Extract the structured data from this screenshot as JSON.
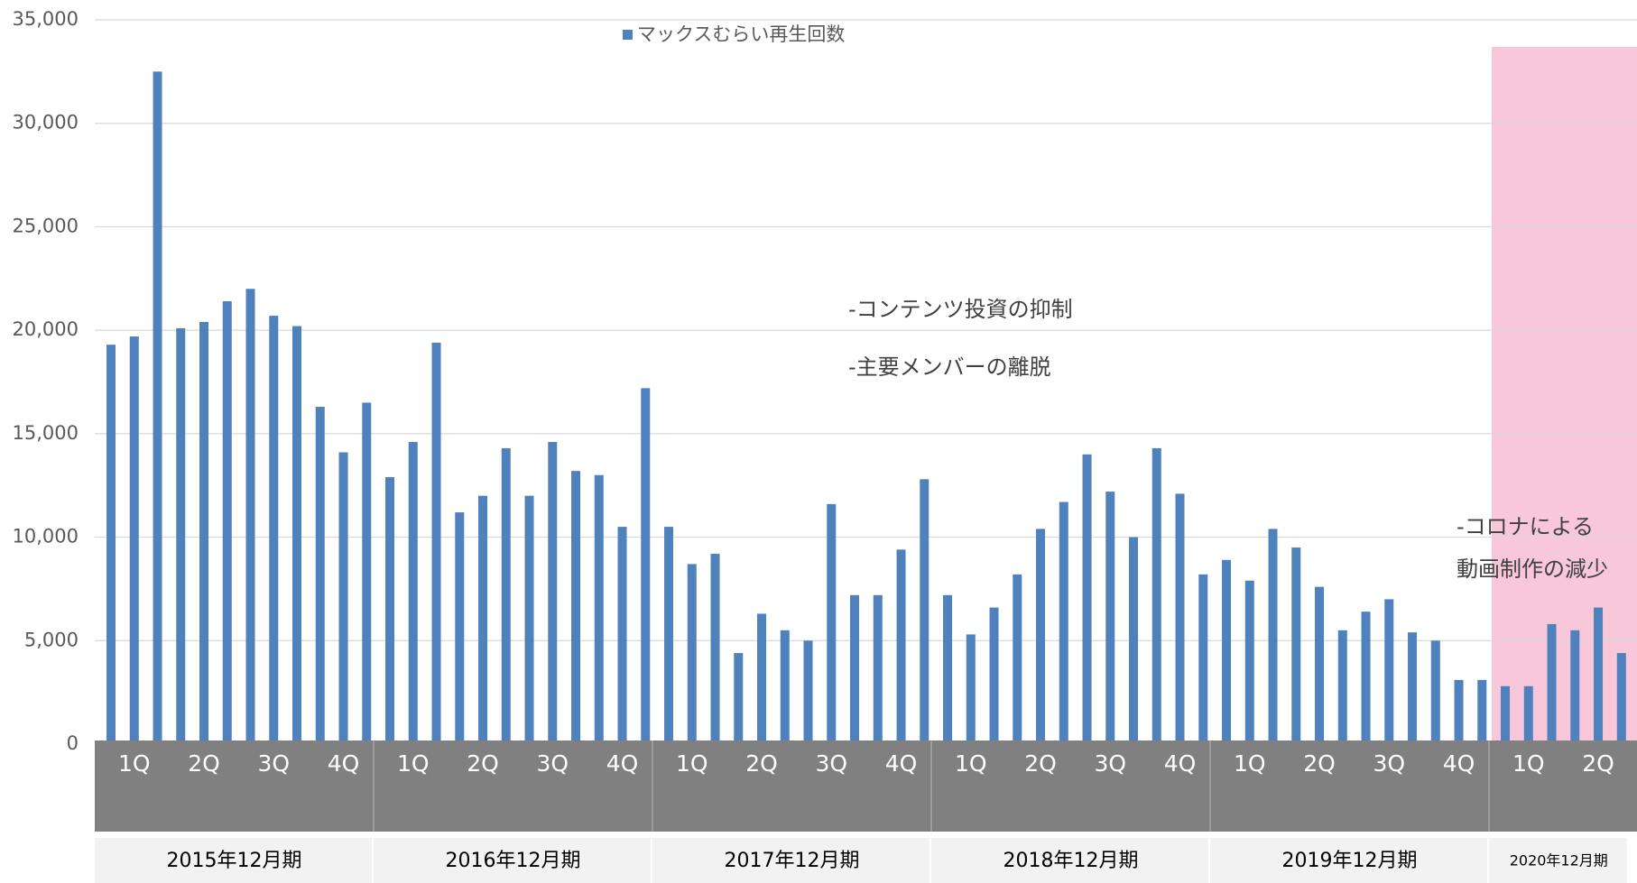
{
  "chart_data": {
    "type": "bar",
    "legend": "マックスむらい再生回数",
    "color": "#4f81bd",
    "highlight_color": "#f8c8da",
    "categories": [
      null,
      null,
      null,
      null,
      null,
      null,
      null,
      null,
      null,
      null,
      null,
      null,
      null,
      null,
      null,
      null,
      null,
      null,
      null,
      null,
      null,
      null,
      null,
      null,
      null,
      null,
      null,
      null,
      null,
      null,
      null,
      null,
      null,
      null,
      null,
      null,
      null,
      null,
      null,
      null,
      null,
      null,
      null,
      null,
      null,
      null,
      null,
      null,
      null,
      null,
      null,
      null,
      null,
      null,
      null,
      null,
      null,
      null,
      null,
      null,
      null,
      null,
      null,
      null,
      null,
      null
    ],
    "values": [
      19300,
      19700,
      32500,
      20100,
      20400,
      21400,
      22000,
      20700,
      20200,
      16300,
      14100,
      16500,
      12900,
      14600,
      19400,
      11200,
      12000,
      14300,
      12000,
      14600,
      13200,
      13000,
      10500,
      17200,
      10500,
      8700,
      9200,
      4400,
      6300,
      5500,
      5000,
      11600,
      7200,
      7200,
      9400,
      12800,
      7200,
      5300,
      6600,
      8200,
      10400,
      11700,
      14000,
      12200,
      10000,
      14300,
      12100,
      8200,
      8900,
      7900,
      10400,
      9500,
      7600,
      5500,
      6400,
      7000,
      5400,
      5000,
      3100,
      3100,
      2800,
      2800,
      5800,
      5500,
      6600,
      4400
    ],
    "groups": [
      {
        "label": "2015年12月期",
        "quarters": [
          "1Q",
          "2Q",
          "3Q",
          "4Q"
        ]
      },
      {
        "label": "2016年12月期",
        "quarters": [
          "1Q",
          "2Q",
          "3Q",
          "4Q"
        ]
      },
      {
        "label": "2017年12月期",
        "quarters": [
          "1Q",
          "2Q",
          "3Q",
          "4Q"
        ]
      },
      {
        "label": "2018年12月期",
        "quarters": [
          "1Q",
          "2Q",
          "3Q",
          "4Q"
        ]
      },
      {
        "label": "2019年12月期",
        "quarters": [
          "1Q",
          "2Q",
          "3Q",
          "4Q"
        ]
      },
      {
        "label": "2020年12月期",
        "quarters": [
          "1Q",
          "2Q"
        ],
        "highlight": true
      }
    ],
    "ylim": [
      0,
      35000
    ],
    "yticks": [
      0,
      {
        "value": 5000,
        "label": "5,000"
      },
      {
        "value": 10000,
        "label": "10,000"
      },
      {
        "value": 15000,
        "label": "15,000"
      },
      {
        "value": 20000,
        "label": "20,000"
      },
      {
        "value": 25000,
        "label": "25,000"
      },
      {
        "value": 30000,
        "label": "30,000"
      },
      {
        "value": 35000,
        "label": "35,000"
      }
    ],
    "grid": true,
    "annotations": [
      "-コンテンツ投資の抑制",
      "-主要メンバーの離脱",
      "-コロナによる",
      "動画制作の減少"
    ]
  }
}
